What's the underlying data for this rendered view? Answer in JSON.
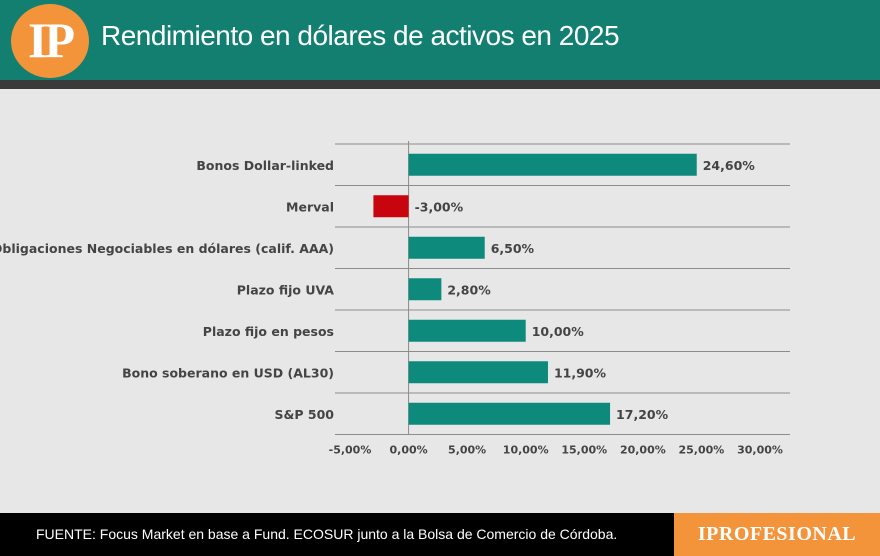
{
  "header": {
    "logo_text": "IP",
    "title": "Rendimiento en dólares de activos en 2025"
  },
  "colors": {
    "header_bg": "#127f71",
    "logo_orange": "#f3943a",
    "positive_bar": "#0e8a7c",
    "negative_bar": "#c8050f",
    "background": "#e7e7e7"
  },
  "chart_data": {
    "type": "bar",
    "orientation": "horizontal",
    "title": "Rendimiento en dólares de activos en 2025",
    "categories": [
      "Bonos Dollar-linked",
      "Merval",
      "Obligaciones Negociables en dólares (calif. AAA)",
      "Plazo fijo UVA",
      "Plazo fijo en pesos",
      "Bono soberano en USD (AL30)",
      "S&P 500"
    ],
    "values": [
      24.6,
      -3.0,
      6.5,
      2.8,
      10.0,
      11.9,
      17.2
    ],
    "data_labels": [
      "24,60%",
      "-3,00%",
      "6,50%",
      "2,80%",
      "10,00%",
      "11,90%",
      "17,20%"
    ],
    "x_ticks": [
      -5,
      0,
      5,
      10,
      15,
      20,
      25,
      30
    ],
    "x_tick_labels": [
      "-5,00%",
      "0,00%",
      "5,00%",
      "10,00%",
      "15,00%",
      "20,00%",
      "25,00%",
      "30,00%"
    ],
    "xlim": [
      -5,
      30
    ],
    "xlabel": "",
    "ylabel": "",
    "grid": "horizontal separators between categories",
    "legend": "none"
  },
  "footer": {
    "source": "FUENTE: Focus Market en base a Fund. ECOSUR junto a la Bolsa de Comercio de Córdoba.",
    "brand": "IPROFESIONAL"
  }
}
